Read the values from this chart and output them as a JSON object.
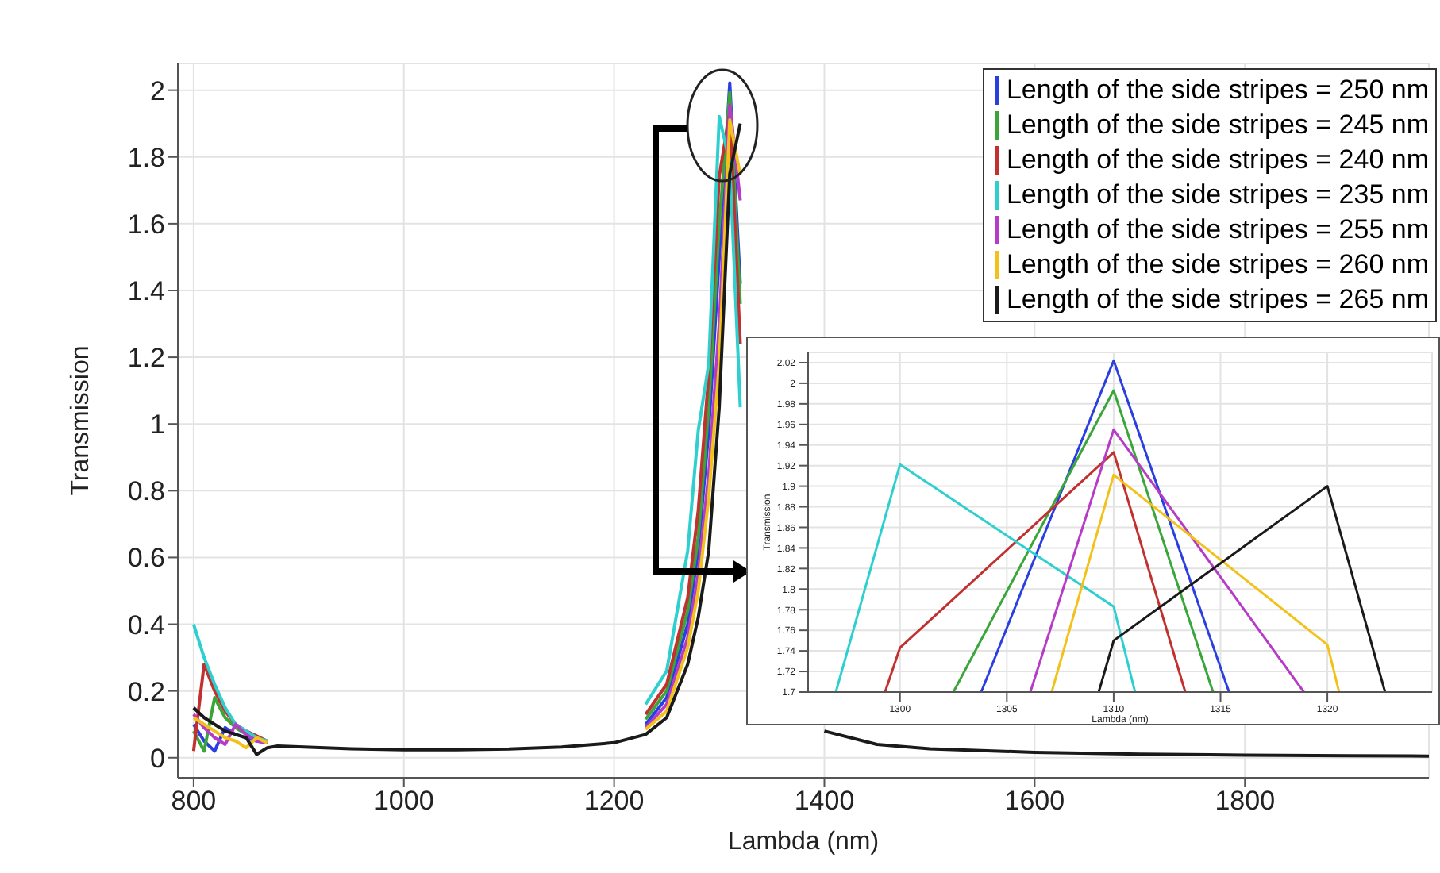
{
  "chart_data": [
    {
      "type": "line",
      "xlabel": "Lambda (nm)",
      "ylabel": "Transmission",
      "xlim": [
        785,
        1975
      ],
      "ylim": [
        -0.06,
        2.08
      ],
      "xticks": [
        800,
        1000,
        1200,
        1400,
        1600,
        1800
      ],
      "yticks": [
        0,
        0.2,
        0.4,
        0.6,
        0.8,
        1,
        1.2,
        1.4,
        1.6,
        1.8,
        2
      ],
      "grid": true,
      "legend": "top right",
      "x": [
        800,
        810,
        820,
        830,
        840,
        850,
        860,
        870,
        880,
        900,
        950,
        1000,
        1050,
        1100,
        1150,
        1200,
        1230,
        1250,
        1270,
        1280,
        1290,
        1300,
        1310,
        1320,
        1330,
        1340,
        1350,
        1370,
        1400,
        1450,
        1500,
        1600,
        1700,
        1800,
        1900,
        1975
      ],
      "series": [
        {
          "name": "Length of the side stripes = 250 nm",
          "color": "#2b3fe0",
          "values": [
            0.1,
            0.05,
            0.02,
            0.09,
            0.07,
            0.06,
            0.05,
            0.045,
            null,
            null,
            null,
            null,
            null,
            null,
            null,
            null,
            0.1,
            0.18,
            0.4,
            0.62,
            0.98,
            1.5,
            2.022,
            1.42,
            null,
            null,
            null,
            null,
            null,
            null,
            null,
            null,
            null,
            null,
            null,
            null
          ]
        },
        {
          "name": "Length of the side stripes = 245 nm",
          "color": "#3aa63a",
          "values": [
            0.08,
            0.02,
            0.18,
            0.12,
            0.09,
            0.07,
            0.055,
            0.045,
            null,
            null,
            null,
            null,
            null,
            null,
            null,
            null,
            0.115,
            0.2,
            0.44,
            0.66,
            1.05,
            1.6,
            1.993,
            1.36,
            null,
            null,
            null,
            null,
            null,
            null,
            null,
            null,
            null,
            null,
            null,
            null
          ]
        },
        {
          "name": "Length of the side stripes = 240 nm",
          "color": "#c0312f",
          "values": [
            0.02,
            0.28,
            0.2,
            0.14,
            0.1,
            0.08,
            0.065,
            0.05,
            null,
            null,
            null,
            null,
            null,
            null,
            null,
            null,
            0.13,
            0.22,
            0.48,
            0.74,
            1.15,
            1.743,
            1.933,
            1.24,
            null,
            null,
            null,
            null,
            null,
            null,
            null,
            null,
            null,
            null,
            null,
            null
          ]
        },
        {
          "name": "Length of the side stripes = 235 nm",
          "color": "#2ecfcf",
          "values": [
            0.4,
            0.3,
            0.22,
            0.15,
            0.1,
            0.08,
            0.06,
            0.05,
            null,
            null,
            null,
            null,
            null,
            null,
            null,
            null,
            0.16,
            0.26,
            0.62,
            0.98,
            1.18,
            1.921,
            1.783,
            1.05,
            null,
            null,
            null,
            null,
            null,
            null,
            null,
            null,
            null,
            null,
            null,
            null
          ]
        },
        {
          "name": "Length of the side stripes = 255 nm",
          "color": "#b63cc8",
          "values": [
            0.13,
            0.09,
            0.06,
            0.04,
            0.1,
            0.07,
            0.05,
            0.045,
            null,
            null,
            null,
            null,
            null,
            null,
            null,
            null,
            0.09,
            0.16,
            0.36,
            0.55,
            0.85,
            1.3,
            1.955,
            1.67,
            null,
            null,
            null,
            null,
            null,
            null,
            null,
            null,
            null,
            null,
            null,
            null
          ]
        },
        {
          "name": "Length of the side stripes = 260 nm",
          "color": "#f2c21b",
          "values": [
            0.12,
            0.1,
            0.08,
            0.06,
            0.05,
            0.03,
            0.06,
            0.045,
            null,
            null,
            null,
            null,
            null,
            null,
            null,
            null,
            0.085,
            0.14,
            0.33,
            0.5,
            0.78,
            1.18,
            1.911,
            1.746,
            null,
            null,
            null,
            null,
            null,
            null,
            null,
            null,
            null,
            null,
            null,
            null
          ]
        },
        {
          "name": "Length of the side stripes = 265 nm",
          "color": "#1a1a1a",
          "values": [
            0.15,
            0.12,
            0.1,
            0.08,
            0.07,
            0.06,
            0.01,
            0.03,
            0.035,
            0.033,
            0.027,
            0.024,
            0.024,
            0.026,
            0.032,
            0.045,
            0.07,
            0.12,
            0.28,
            0.42,
            0.62,
            1.05,
            1.75,
            1.9,
            null,
            null,
            null,
            null,
            0.08,
            0.04,
            0.027,
            0.016,
            0.011,
            0.008,
            0.006,
            0.005
          ]
        }
      ]
    },
    {
      "type": "line",
      "xlabel": "Lambda (nm)",
      "ylabel": "Transmission",
      "xlim": [
        1295.7,
        1324.9
      ],
      "ylim": [
        1.7,
        2.03
      ],
      "xticks": [
        1300,
        1305,
        1310,
        1315,
        1320
      ],
      "yticks": [
        1.7,
        1.72,
        1.74,
        1.76,
        1.78,
        1.8,
        1.82,
        1.84,
        1.86,
        1.88,
        1.9,
        1.92,
        1.94,
        1.96,
        1.98,
        2,
        2.02
      ],
      "grid": true,
      "series": [
        {
          "color": "#2b3fe0",
          "x": [
            1303.8,
            1310,
            1315.4
          ],
          "values": [
            1.7,
            2.022,
            1.7
          ]
        },
        {
          "color": "#3aa63a",
          "x": [
            1302.5,
            1310,
            1314.65
          ],
          "values": [
            1.7,
            1.993,
            1.7
          ]
        },
        {
          "color": "#c0312f",
          "x": [
            1299.3,
            1300,
            1310,
            1313.35
          ],
          "values": [
            1.7,
            1.743,
            1.933,
            1.7
          ]
        },
        {
          "color": "#2ecfcf",
          "x": [
            1297,
            1300,
            1310,
            1311
          ],
          "values": [
            1.7,
            1.921,
            1.783,
            1.7
          ]
        },
        {
          "color": "#b63cc8",
          "x": [
            1306.1,
            1310,
            1318.9
          ],
          "values": [
            1.7,
            1.955,
            1.7
          ]
        },
        {
          "color": "#f2c21b",
          "x": [
            1307.1,
            1310,
            1320,
            1320.55
          ],
          "values": [
            1.7,
            1.911,
            1.746,
            1.7
          ]
        },
        {
          "color": "#1a1a1a",
          "x": [
            1309.3,
            1310,
            1320,
            1322.7
          ],
          "values": [
            1.7,
            1.75,
            1.9,
            1.7
          ]
        }
      ]
    }
  ]
}
